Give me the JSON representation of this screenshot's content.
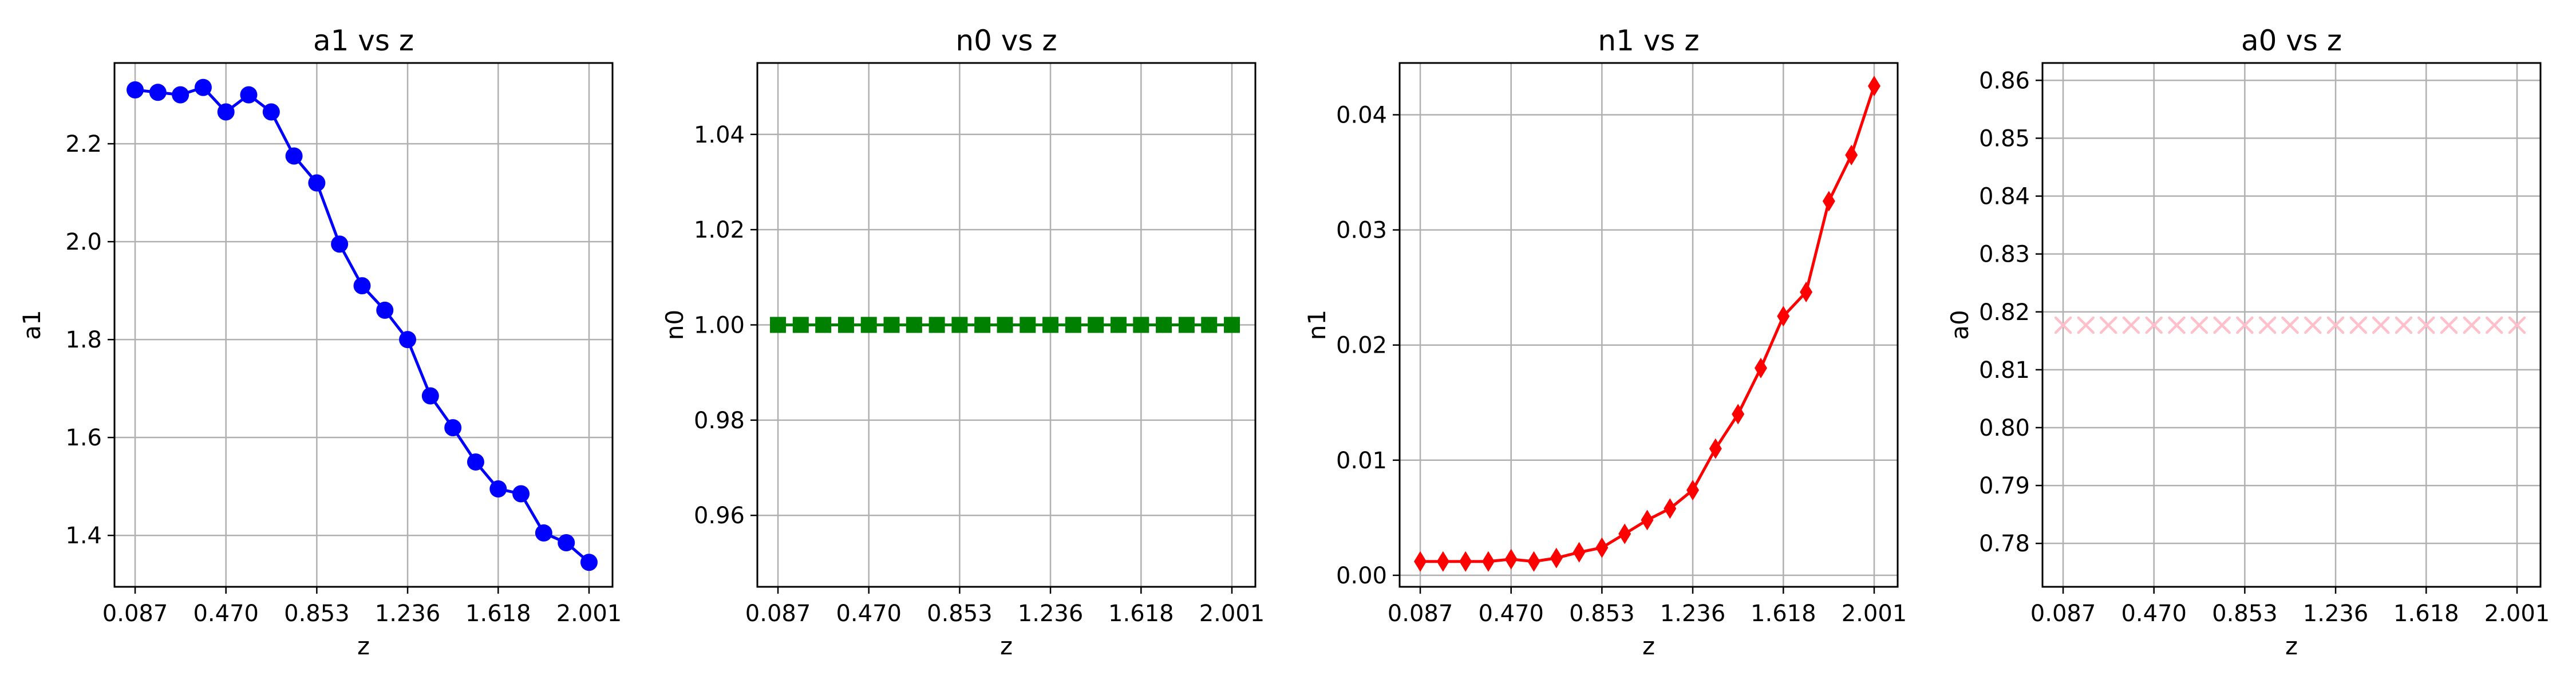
{
  "chart_data": [
    {
      "type": "line",
      "title": "a1 vs z",
      "xlabel": "z",
      "ylabel": "a1",
      "xlim": [
        0.0,
        2.1
      ],
      "ylim": [
        1.295,
        2.365
      ],
      "xticks": [
        0.087,
        0.47,
        0.853,
        1.236,
        1.618,
        2.001
      ],
      "xtick_labels": [
        "0.087",
        "0.470",
        "0.853",
        "1.236",
        "1.618",
        "2.001"
      ],
      "yticks": [
        1.4,
        1.6,
        1.8,
        2.0,
        2.2
      ],
      "ytick_labels": [
        "1.4",
        "1.6",
        "1.8",
        "2.0",
        "2.2"
      ],
      "grid": true,
      "series": [
        {
          "color": "#0000ff",
          "marker": "circle",
          "x": [
            0.087,
            0.183,
            0.278,
            0.374,
            0.47,
            0.566,
            0.661,
            0.757,
            0.853,
            0.949,
            1.044,
            1.14,
            1.236,
            1.332,
            1.427,
            1.523,
            1.618,
            1.714,
            1.81,
            1.905,
            2.001
          ],
          "y": [
            2.31,
            2.305,
            2.3,
            2.315,
            2.265,
            2.3,
            2.265,
            2.175,
            2.12,
            1.995,
            1.91,
            1.86,
            1.8,
            1.685,
            1.62,
            1.55,
            1.495,
            1.485,
            1.405,
            1.385,
            1.345
          ]
        }
      ]
    },
    {
      "type": "line",
      "title": "n0 vs z",
      "xlabel": "z",
      "ylabel": "n0",
      "xlim": [
        0.0,
        2.1
      ],
      "ylim": [
        0.945,
        1.055
      ],
      "xticks": [
        0.087,
        0.47,
        0.853,
        1.236,
        1.618,
        2.001
      ],
      "xtick_labels": [
        "0.087",
        "0.470",
        "0.853",
        "1.236",
        "1.618",
        "2.001"
      ],
      "yticks": [
        0.96,
        0.98,
        1.0,
        1.02,
        1.04
      ],
      "ytick_labels": [
        "0.96",
        "0.98",
        "1.00",
        "1.02",
        "1.04"
      ],
      "grid": true,
      "series": [
        {
          "color": "#008000",
          "marker": "square",
          "x": [
            0.087,
            0.183,
            0.278,
            0.374,
            0.47,
            0.566,
            0.661,
            0.757,
            0.853,
            0.949,
            1.044,
            1.14,
            1.236,
            1.332,
            1.427,
            1.523,
            1.618,
            1.714,
            1.81,
            1.905,
            2.001
          ],
          "y": [
            1.0,
            1.0,
            1.0,
            1.0,
            1.0,
            1.0,
            1.0,
            1.0,
            1.0,
            1.0,
            1.0,
            1.0,
            1.0,
            1.0,
            1.0,
            1.0,
            1.0,
            1.0,
            1.0,
            1.0,
            1.0
          ]
        }
      ]
    },
    {
      "type": "line",
      "title": "n1 vs z",
      "xlabel": "z",
      "ylabel": "n1",
      "xlim": [
        0.0,
        2.1
      ],
      "ylim": [
        -0.001,
        0.0445
      ],
      "xticks": [
        0.087,
        0.47,
        0.853,
        1.236,
        1.618,
        2.001
      ],
      "xtick_labels": [
        "0.087",
        "0.470",
        "0.853",
        "1.236",
        "1.618",
        "2.001"
      ],
      "yticks": [
        0.0,
        0.01,
        0.02,
        0.03,
        0.04
      ],
      "ytick_labels": [
        "0.00",
        "0.01",
        "0.02",
        "0.03",
        "0.04"
      ],
      "grid": true,
      "series": [
        {
          "color": "#ff0000",
          "marker": "diamond",
          "x": [
            0.087,
            0.183,
            0.278,
            0.374,
            0.47,
            0.566,
            0.661,
            0.757,
            0.853,
            0.949,
            1.044,
            1.14,
            1.236,
            1.332,
            1.427,
            1.523,
            1.618,
            1.714,
            1.81,
            1.905,
            2.001
          ],
          "y": [
            0.0012,
            0.0012,
            0.0012,
            0.0012,
            0.0014,
            0.0012,
            0.0015,
            0.002,
            0.0024,
            0.0036,
            0.0048,
            0.0058,
            0.0074,
            0.011,
            0.014,
            0.018,
            0.0225,
            0.0246,
            0.0325,
            0.0365,
            0.0425
          ]
        }
      ]
    },
    {
      "type": "line",
      "title": "a0 vs z",
      "xlabel": "z",
      "ylabel": "a0",
      "xlim": [
        0.0,
        2.1
      ],
      "ylim": [
        0.7725,
        0.863
      ],
      "xticks": [
        0.087,
        0.47,
        0.853,
        1.236,
        1.618,
        2.001
      ],
      "xtick_labels": [
        "0.087",
        "0.470",
        "0.853",
        "1.236",
        "1.618",
        "2.001"
      ],
      "yticks": [
        0.78,
        0.79,
        0.8,
        0.81,
        0.82,
        0.83,
        0.84,
        0.85,
        0.86
      ],
      "ytick_labels": [
        "0.78",
        "0.79",
        "0.80",
        "0.81",
        "0.82",
        "0.83",
        "0.84",
        "0.85",
        "0.86"
      ],
      "grid": true,
      "series": [
        {
          "color": "#ffc0cb",
          "marker": "x",
          "x": [
            0.087,
            0.183,
            0.278,
            0.374,
            0.47,
            0.566,
            0.661,
            0.757,
            0.853,
            0.949,
            1.044,
            1.14,
            1.236,
            1.332,
            1.427,
            1.523,
            1.618,
            1.714,
            1.81,
            1.905,
            2.001
          ],
          "y": [
            0.8177,
            0.8177,
            0.8177,
            0.8177,
            0.8177,
            0.8177,
            0.8177,
            0.8177,
            0.8177,
            0.8177,
            0.8177,
            0.8177,
            0.8177,
            0.8177,
            0.8177,
            0.8177,
            0.8177,
            0.8177,
            0.8177,
            0.8177,
            0.8177
          ]
        }
      ]
    }
  ]
}
